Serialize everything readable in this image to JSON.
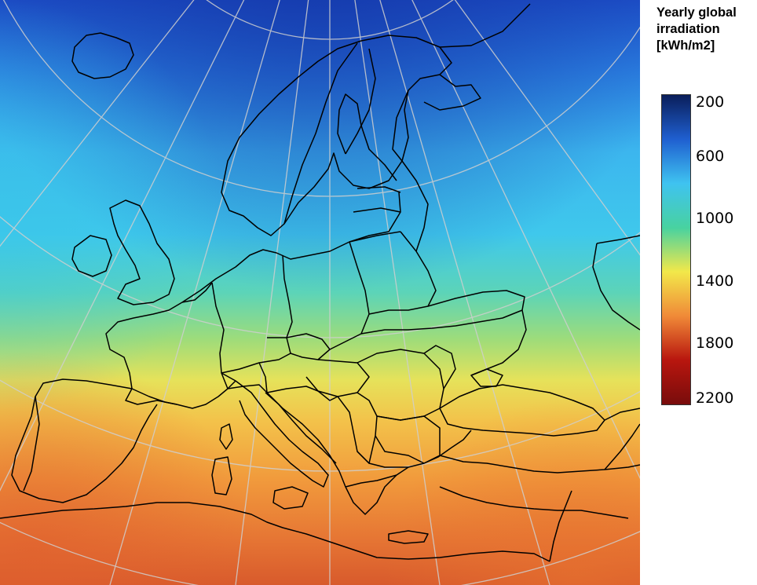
{
  "legend": {
    "title_lines": [
      "Yearly global",
      "irradiation",
      "[kWh/m2]"
    ],
    "ticks": [
      "200",
      "600",
      "1000",
      "1400",
      "1800",
      "2200"
    ],
    "colors": [
      "#0a1e5a",
      "#1f5fd0",
      "#3fc3f0",
      "#48d2a0",
      "#f2e84a",
      "#f08a38",
      "#b8160e",
      "#780c0c"
    ]
  },
  "map": {
    "colors": {
      "border": "#000000",
      "graticule": "#cfcfcf"
    }
  }
}
